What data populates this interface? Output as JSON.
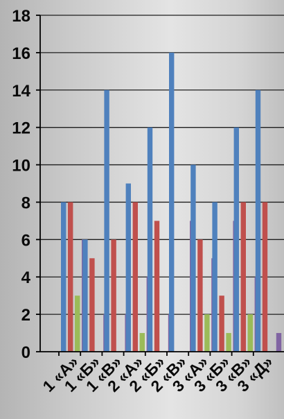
{
  "chart_data": {
    "type": "bar",
    "title": "",
    "xlabel": "",
    "ylabel": "",
    "categories": [
      "1 «А»",
      "1 «Б»",
      "1 «В»",
      "2 «А»",
      "2 «Б»",
      "2 «В»",
      "3 «А»",
      "3 «Б»",
      "3 «В»",
      "3 «Д»"
    ],
    "series": [
      {
        "color": "#4f81bd",
        "values": [
          8,
          6,
          14,
          9,
          12,
          16,
          10,
          8,
          12,
          14
        ]
      },
      {
        "color": "#c0504d",
        "values": [
          8,
          5,
          6,
          8,
          7,
          0,
          6,
          3,
          8,
          8
        ]
      },
      {
        "color": "#9bbb59",
        "values": [
          3,
          0,
          0,
          1,
          0,
          0,
          2,
          1,
          2,
          0
        ]
      },
      {
        "color": "#8064a2",
        "values": [
          6,
          2,
          2,
          4,
          2,
          7,
          5,
          7,
          4,
          1
        ]
      }
    ],
    "ylim": [
      0,
      18
    ],
    "yticks": [
      0,
      2,
      4,
      6,
      8,
      10,
      12,
      14,
      16,
      18
    ],
    "grid": true,
    "legend": "none"
  }
}
